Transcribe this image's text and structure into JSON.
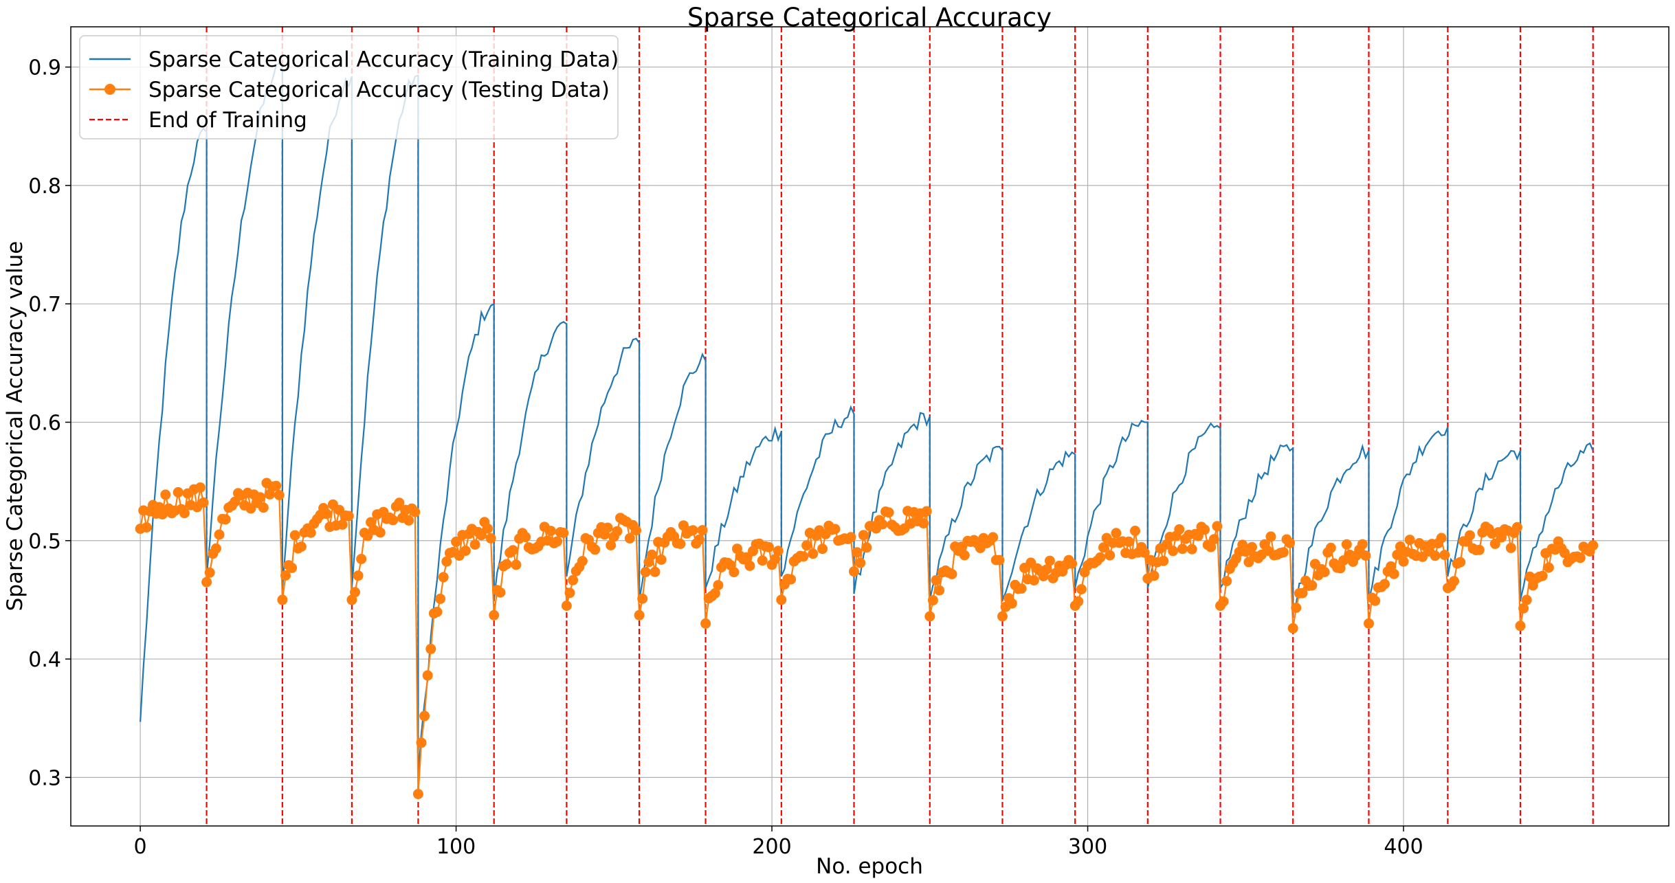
{
  "chart_data": {
    "type": "line",
    "title": "Sparse Categorical Accuracy",
    "xlabel": "No. epoch",
    "ylabel": "Sparse Categorical Accuracy value",
    "xlim": [
      -22,
      484
    ],
    "ylim": [
      0.259,
      0.934
    ],
    "xticks": [
      0,
      100,
      200,
      300,
      400
    ],
    "yticks": [
      0.3,
      0.4,
      0.5,
      0.6,
      0.7,
      0.8,
      0.9
    ],
    "grid": true,
    "legend_position": "upper-left",
    "colors": {
      "train": "#1f77b4",
      "test": "#ff7f0e",
      "end": "#ff0000"
    },
    "legend": [
      {
        "label": "Sparse Categorical Accuracy (Training Data)",
        "style": "line",
        "color": "#1f77b4"
      },
      {
        "label": "Sparse Categorical Accuracy (Testing Data)",
        "style": "line-marker",
        "color": "#ff7f0e"
      },
      {
        "label": "End of Training",
        "style": "dashed",
        "color": "#ff0000"
      }
    ],
    "training_end_epochs": [
      21,
      45,
      67,
      88,
      112,
      135,
      158,
      179,
      203,
      226,
      250,
      273,
      296,
      319,
      342,
      365,
      389,
      414,
      437,
      460
    ],
    "series": [
      {
        "name": "Sparse Categorical Accuracy (Training Data)",
        "color": "#1f77b4",
        "marker": "none",
        "segments": [
          {
            "start": 0,
            "end": 21,
            "from": 0.347,
            "to": 0.845
          },
          {
            "start": 21,
            "end": 45,
            "from": 0.47,
            "to": 0.9
          },
          {
            "start": 45,
            "end": 67,
            "from": 0.46,
            "to": 0.892
          },
          {
            "start": 67,
            "end": 88,
            "from": 0.46,
            "to": 0.893
          },
          {
            "start": 88,
            "end": 112,
            "from": 0.3,
            "to": 0.7
          },
          {
            "start": 112,
            "end": 135,
            "from": 0.45,
            "to": 0.683
          },
          {
            "start": 135,
            "end": 158,
            "from": 0.47,
            "to": 0.667
          },
          {
            "start": 158,
            "end": 179,
            "from": 0.45,
            "to": 0.652
          },
          {
            "start": 179,
            "end": 203,
            "from": 0.46,
            "to": 0.592
          },
          {
            "start": 203,
            "end": 226,
            "from": 0.47,
            "to": 0.607
          },
          {
            "start": 226,
            "end": 250,
            "from": 0.455,
            "to": 0.605
          },
          {
            "start": 250,
            "end": 273,
            "from": 0.45,
            "to": 0.576
          },
          {
            "start": 273,
            "end": 296,
            "from": 0.45,
            "to": 0.573
          },
          {
            "start": 296,
            "end": 319,
            "from": 0.46,
            "to": 0.6
          },
          {
            "start": 319,
            "end": 342,
            "from": 0.46,
            "to": 0.595
          },
          {
            "start": 342,
            "end": 365,
            "from": 0.46,
            "to": 0.578
          },
          {
            "start": 365,
            "end": 389,
            "from": 0.44,
            "to": 0.576
          },
          {
            "start": 389,
            "end": 414,
            "from": 0.45,
            "to": 0.596
          },
          {
            "start": 414,
            "end": 437,
            "from": 0.47,
            "to": 0.576
          },
          {
            "start": 437,
            "end": 460,
            "from": 0.45,
            "to": 0.576
          }
        ]
      },
      {
        "name": "Sparse Categorical Accuracy (Testing Data)",
        "color": "#ff7f0e",
        "marker": "circle",
        "segments": [
          {
            "start": 0,
            "end": 21,
            "level": 0.535,
            "first": 0.51
          },
          {
            "start": 21,
            "end": 45,
            "level": 0.54,
            "first": 0.465
          },
          {
            "start": 45,
            "end": 67,
            "level": 0.525,
            "first": 0.45
          },
          {
            "start": 67,
            "end": 88,
            "level": 0.525,
            "first": 0.45
          },
          {
            "start": 88,
            "end": 112,
            "level": 0.51,
            "first": 0.286
          },
          {
            "start": 112,
            "end": 135,
            "level": 0.505,
            "first": 0.437
          },
          {
            "start": 135,
            "end": 158,
            "level": 0.51,
            "first": 0.445
          },
          {
            "start": 158,
            "end": 179,
            "level": 0.505,
            "first": 0.437
          },
          {
            "start": 179,
            "end": 203,
            "level": 0.49,
            "first": 0.43
          },
          {
            "start": 203,
            "end": 226,
            "level": 0.505,
            "first": 0.45
          },
          {
            "start": 226,
            "end": 250,
            "level": 0.52,
            "first": 0.474
          },
          {
            "start": 250,
            "end": 273,
            "level": 0.495,
            "first": 0.436
          },
          {
            "start": 273,
            "end": 296,
            "level": 0.48,
            "first": 0.436
          },
          {
            "start": 296,
            "end": 319,
            "level": 0.5,
            "first": 0.445
          },
          {
            "start": 319,
            "end": 342,
            "level": 0.505,
            "first": 0.468
          },
          {
            "start": 342,
            "end": 365,
            "level": 0.5,
            "first": 0.445
          },
          {
            "start": 365,
            "end": 389,
            "level": 0.49,
            "first": 0.426
          },
          {
            "start": 389,
            "end": 414,
            "level": 0.495,
            "first": 0.43
          },
          {
            "start": 414,
            "end": 437,
            "level": 0.505,
            "first": 0.46
          },
          {
            "start": 437,
            "end": 460,
            "level": 0.495,
            "first": 0.428
          }
        ]
      }
    ]
  }
}
